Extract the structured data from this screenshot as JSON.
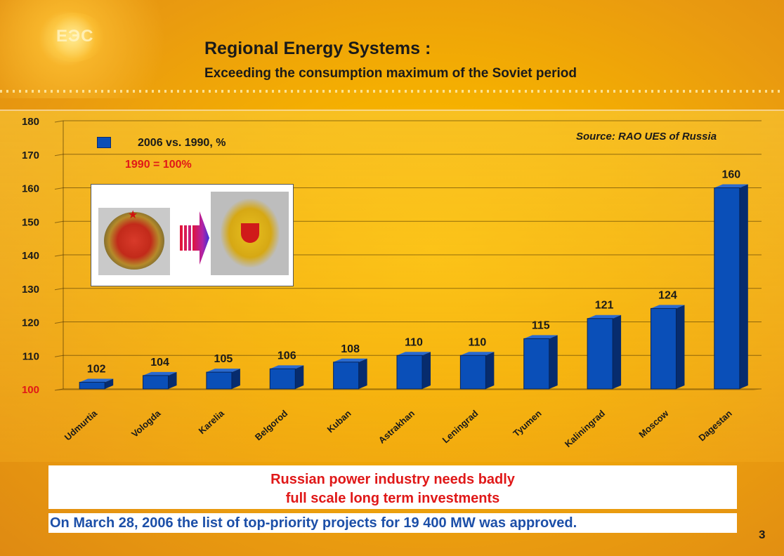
{
  "header": {
    "logo_text": "ЕЭС",
    "title": "Regional Energy Systems :",
    "subtitle": "Exceeding the consumption maximum of the Soviet period"
  },
  "source_note": "Source: RAO UES of Russia",
  "legend": {
    "label": "2006 vs. 1990, %",
    "swatch_color": "#0a4fb8"
  },
  "baseline_note": "1990 = 100%",
  "chart_data": {
    "type": "bar",
    "categories": [
      "Udmurtia",
      "Vologda",
      "Karelia",
      "Belgorod",
      "Kuban",
      "Astrakhan",
      "Leningrad",
      "Tyumen",
      "Kaliningrad",
      "Moscow",
      "Dagestan"
    ],
    "series": [
      {
        "name": "2006 vs. 1990, %",
        "values": [
          102,
          104,
          105,
          106,
          108,
          110,
          110,
          115,
          121,
          124,
          160
        ]
      }
    ],
    "ylim": [
      100,
      180
    ],
    "yticks": [
      100,
      110,
      120,
      130,
      140,
      150,
      160,
      170,
      180
    ],
    "data_labels": [
      "102",
      "104",
      "105",
      "106",
      "108",
      "110",
      "110",
      "115",
      "121",
      "124",
      "160"
    ],
    "grid": true,
    "legend_position": "top-left",
    "bar_color": "#0a4fb8"
  },
  "callout": {
    "line1": "Russian power industry needs badly",
    "line2": "full scale long term investments"
  },
  "approved_note": "On March 28, 2006 the list of top-priority projects for 19 400 MW was approved.",
  "page_number": "3"
}
